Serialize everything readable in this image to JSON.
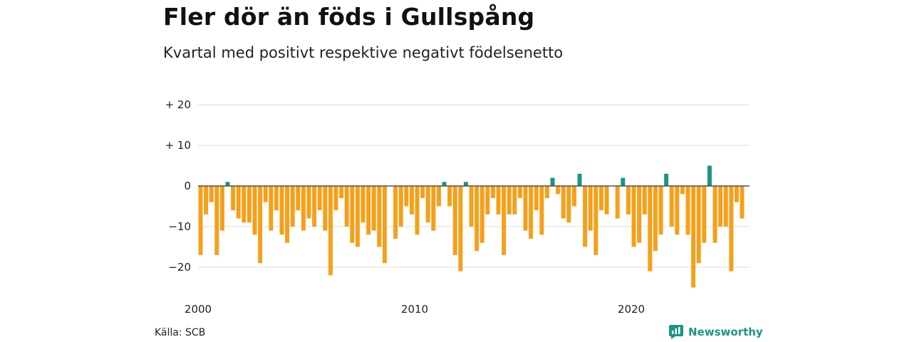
{
  "header": {
    "title": "Fler dör än föds i Gullspång",
    "subtitle": "Kvartal med positivt respektive negativt födelsenetto"
  },
  "footer": {
    "source": "Källa: SCB",
    "brand": "Newsworthy"
  },
  "colors": {
    "positive": "#1a9586",
    "negative": "#f5a01a",
    "grid": "#dddddd",
    "zero_line": "#333333",
    "brand": "#1a9586"
  },
  "icons": {
    "brand_logo": "chart-logo-icon"
  },
  "chart_data": {
    "type": "bar",
    "title": "Fler dör än föds i Gullspång",
    "subtitle": "Kvartal med positivt respektive negativt födelsenetto",
    "xlabel": "",
    "ylabel": "",
    "x_start_year": 2000,
    "periods_per_year": 4,
    "x_ticks": [
      2000,
      2010,
      2020
    ],
    "y_ticks": [
      20,
      10,
      0,
      -10,
      -20
    ],
    "y_tick_labels": [
      "+ 20",
      "+ 10",
      "0",
      "−10",
      "−20"
    ],
    "ylim": [
      -25,
      22
    ],
    "grid": true,
    "legend": "none",
    "values": [
      -17,
      -7,
      -4,
      -17,
      -11,
      1,
      -6,
      -8,
      -9,
      -9,
      -12,
      -19,
      -4,
      -11,
      -6,
      -12,
      -14,
      -10,
      -6,
      -11,
      -8,
      -10,
      -6,
      -11,
      -22,
      -6,
      -3,
      -10,
      -14,
      -15,
      -9,
      -12,
      -11,
      -15,
      -19,
      0,
      -13,
      -10,
      -5,
      -7,
      -12,
      -3,
      -9,
      -11,
      -5,
      1,
      -5,
      -17,
      -21,
      1,
      -10,
      -16,
      -14,
      -7,
      -3,
      -7,
      -17,
      -7,
      -7,
      -3,
      -11,
      -13,
      -6,
      -12,
      -3,
      2,
      -2,
      -8,
      -9,
      -5,
      3,
      -15,
      -11,
      -17,
      -6,
      -7,
      0,
      -8,
      2,
      -7,
      -15,
      -14,
      -7,
      -21,
      -16,
      -12,
      3,
      -10,
      -12,
      -2,
      -12,
      -25,
      -19,
      -14,
      5,
      -14,
      -10,
      -10,
      -21,
      -4,
      -8
    ]
  }
}
